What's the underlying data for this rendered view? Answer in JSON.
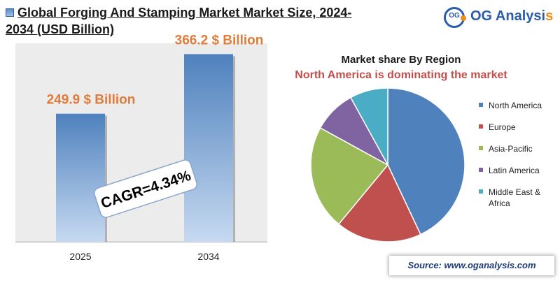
{
  "header": {
    "title": "Global Forging And Stamping Market Market Size, 2024-2034 (USD Billion)",
    "icon": "chart-square-icon"
  },
  "logo": {
    "initials": "OG",
    "name_main": "OG Analysi",
    "name_accent": "s",
    "colors": {
      "primary": "#2b5ca8",
      "accent": "#f08a1c"
    }
  },
  "source": "Source: www.oganalysis.com",
  "chart_data": [
    {
      "type": "bar",
      "categories": [
        "2025",
        "2034"
      ],
      "values": [
        249.9,
        366.2
      ],
      "data_labels": [
        "249.9 $ Billion",
        "366.2 $ Billion"
      ],
      "ylim": [
        0,
        390
      ],
      "annotation": "CAGR=4.34%",
      "colors": {
        "bar_top": "#4f81bd",
        "bar_bottom": "#c6d9f1",
        "label": "#e07b39"
      }
    },
    {
      "type": "pie",
      "title": "Market share By Region",
      "subtitle": "North America is dominating the market",
      "categories": [
        "North America",
        "Europe",
        "Asia-Pacific",
        "Latin America",
        "Middle East & Africa"
      ],
      "values": [
        43,
        18,
        22,
        9,
        8
      ],
      "colors": [
        "#4f81bd",
        "#c0504d",
        "#9bbb59",
        "#8064a2",
        "#4bacc6"
      ],
      "legend_position": "right"
    }
  ]
}
